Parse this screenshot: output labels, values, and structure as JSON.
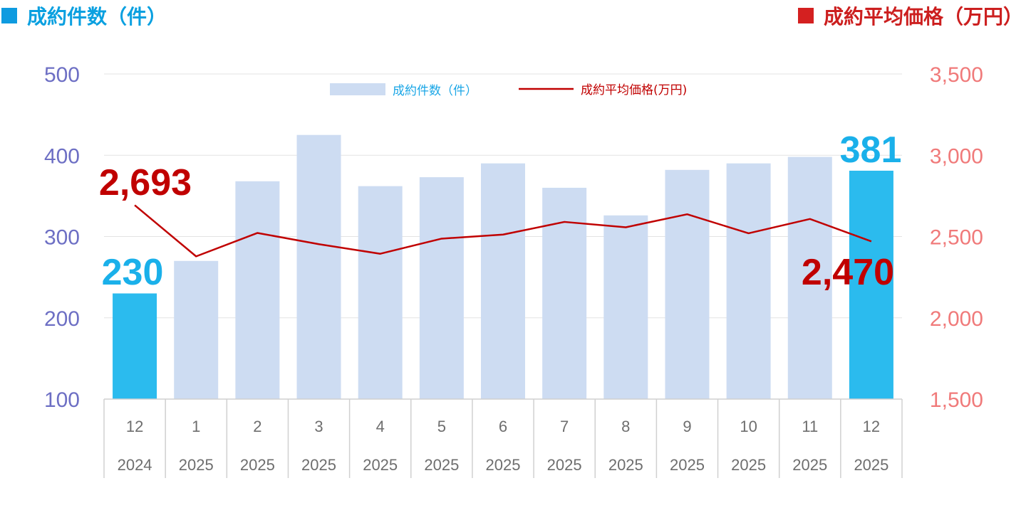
{
  "header": {
    "left_label": "成約件数（件）",
    "right_label": "成約平均価格（万円）"
  },
  "legend": {
    "bar_label": "成約件数（件）",
    "line_label": "成約平均価格(万円)"
  },
  "colors": {
    "bar": "#cddcf2",
    "bar_highlight": "#2bbbee",
    "line": "#c00000",
    "left_axis": "#6d6fc4",
    "right_axis": "#f07a7a",
    "count_callout": "#1ab0ea",
    "price_callout": "#c00000"
  },
  "chart_data": {
    "type": "bar",
    "combo": "bar+line",
    "categories": [
      {
        "month": "12",
        "year": "2024"
      },
      {
        "month": "1",
        "year": "2025"
      },
      {
        "month": "2",
        "year": "2025"
      },
      {
        "month": "3",
        "year": "2025"
      },
      {
        "month": "4",
        "year": "2025"
      },
      {
        "month": "5",
        "year": "2025"
      },
      {
        "month": "6",
        "year": "2025"
      },
      {
        "month": "7",
        "year": "2025"
      },
      {
        "month": "8",
        "year": "2025"
      },
      {
        "month": "9",
        "year": "2025"
      },
      {
        "month": "10",
        "year": "2025"
      },
      {
        "month": "11",
        "year": "2025"
      },
      {
        "month": "12",
        "year": "2025"
      }
    ],
    "series": [
      {
        "name": "成約件数（件）",
        "type": "bar",
        "axis": "left",
        "values": [
          230,
          270,
          368,
          425,
          362,
          373,
          390,
          360,
          326,
          382,
          390,
          398,
          381
        ],
        "highlight": [
          0,
          12
        ]
      },
      {
        "name": "成約平均価格(万円)",
        "type": "line",
        "axis": "right",
        "values": [
          2693,
          2378,
          2522,
          2453,
          2394,
          2487,
          2512,
          2590,
          2557,
          2637,
          2520,
          2608,
          2470
        ]
      }
    ],
    "left_axis": {
      "ylim": [
        100,
        500
      ],
      "ticks": [
        "100",
        "200",
        "300",
        "400",
        "500"
      ]
    },
    "right_axis": {
      "ylim": [
        1500,
        3500
      ],
      "ticks": [
        "1,500",
        "2,000",
        "2,500",
        "3,000",
        "3,500"
      ]
    },
    "callouts": {
      "first_count": "230",
      "last_count": "381",
      "first_price": "2,693",
      "last_price": "2,470"
    },
    "grid": true,
    "legend_position": "top-center"
  }
}
